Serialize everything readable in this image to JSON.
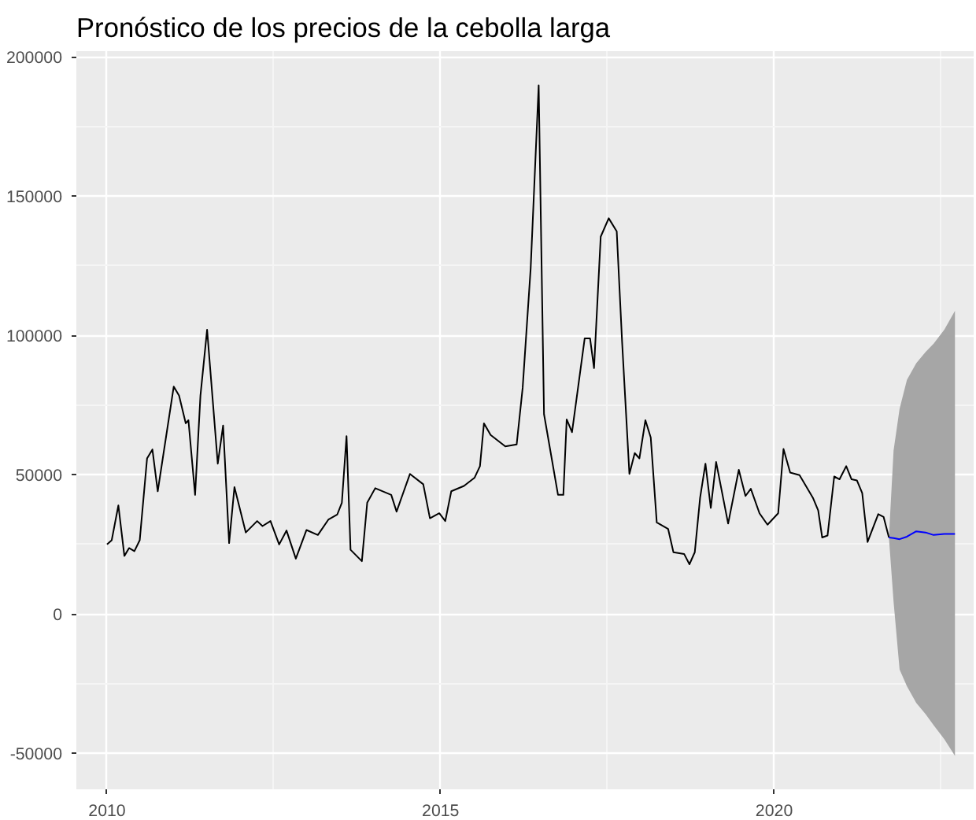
{
  "chart_data": {
    "type": "line",
    "title": "Pronóstico de los precios de la cebolla larga",
    "xlim": [
      2009.54,
      2022.99
    ],
    "ylim": [
      -63000,
      202000
    ],
    "xticks": [
      2010,
      2015,
      2020
    ],
    "yticks": [
      -50000,
      0,
      50000,
      100000,
      150000,
      200000
    ],
    "grid": true,
    "marker": "none",
    "line_style": "solid",
    "series": [
      {
        "color": "#000000",
        "x": [
          2010.0,
          2010.07,
          2010.17,
          2010.26,
          2010.33,
          2010.41,
          2010.49,
          2010.6,
          2010.68,
          2010.76,
          2011.0,
          2011.08,
          2011.18,
          2011.22,
          2011.32,
          2011.4,
          2011.5,
          2011.66,
          2011.74,
          2011.83,
          2011.91,
          2012.08,
          2012.25,
          2012.33,
          2012.45,
          2012.58,
          2012.69,
          2012.83,
          2012.99,
          2013.16,
          2013.32,
          2013.45,
          2013.52,
          2013.59,
          2013.65,
          2013.82,
          2013.9,
          2014.02,
          2014.26,
          2014.34,
          2014.54,
          2014.74,
          2014.84,
          2014.98,
          2015.07,
          2015.16,
          2015.35,
          2015.51,
          2015.59,
          2015.65,
          2015.75,
          2015.97,
          2016.14,
          2016.23,
          2016.35,
          2016.47,
          2016.55,
          2016.76,
          2016.84,
          2016.89,
          2016.97,
          2017.16,
          2017.24,
          2017.3,
          2017.4,
          2017.52,
          2017.64,
          2017.72,
          2017.83,
          2017.91,
          2017.98,
          2018.07,
          2018.15,
          2018.24,
          2018.41,
          2018.49,
          2018.65,
          2018.73,
          2018.81,
          2018.89,
          2018.97,
          2019.05,
          2019.13,
          2019.31,
          2019.47,
          2019.57,
          2019.65,
          2019.78,
          2019.9,
          2020.06,
          2020.14,
          2020.24,
          2020.38,
          2020.58,
          2020.66,
          2020.72,
          2020.8,
          2020.9,
          2020.98,
          2021.08,
          2021.16,
          2021.24,
          2021.32,
          2021.4,
          2021.56,
          2021.64,
          2021.72
        ],
        "values": [
          24900,
          26400,
          38900,
          20800,
          23600,
          22500,
          26400,
          55800,
          59000,
          44000,
          81600,
          78300,
          68400,
          69500,
          42700,
          78300,
          102000,
          53900,
          67600,
          25400,
          45500,
          29200,
          33300,
          31500,
          33300,
          24900,
          29900,
          19800,
          30100,
          28300,
          33900,
          35600,
          39900,
          63800,
          23000,
          18900,
          39900,
          45100,
          42700,
          36700,
          50200,
          46500,
          34300,
          36100,
          33300,
          44000,
          45900,
          48900,
          53000,
          68400,
          64200,
          60100,
          60800,
          81100,
          124000,
          189700,
          71700,
          42700,
          42700,
          69800,
          65200,
          98900,
          98900,
          88200,
          135400,
          142000,
          137300,
          97900,
          50200,
          57700,
          55800,
          69500,
          63300,
          32800,
          30500,
          22100,
          21500,
          17800,
          22100,
          41700,
          53900,
          38000,
          54500,
          32400,
          51700,
          42300,
          44900,
          36100,
          32000,
          36100,
          59200,
          50700,
          49800,
          41700,
          37100,
          27400,
          28100,
          49300,
          48300,
          53000,
          48300,
          47900,
          43300,
          25800,
          35800,
          34800,
          27400
        ]
      },
      {
        "color": "#0000ff",
        "x": [
          2021.72,
          2021.79,
          2021.88,
          2021.99,
          2022.13,
          2022.27,
          2022.39,
          2022.55,
          2022.71
        ],
        "values": [
          27400,
          27200,
          26800,
          27700,
          29600,
          29200,
          28300,
          28700,
          28700
        ],
        "lower": [
          27400,
          4300,
          -20000,
          -26000,
          -32000,
          -36000,
          -40000,
          -45000,
          -51000
        ],
        "upper": [
          27400,
          58600,
          73600,
          84000,
          90000,
          94000,
          97000,
          102000,
          108800
        ]
      }
    ]
  }
}
